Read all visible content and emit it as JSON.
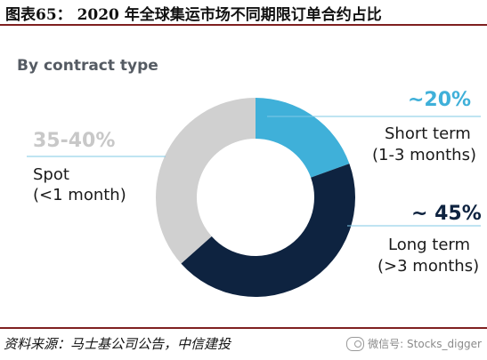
{
  "figure": {
    "title": "图表65：  2020 年全球集运市场不同期限订单合约占比",
    "source": "资料来源：马士基公司公告，中信建投",
    "watermark": "微信号: Stocks_digger"
  },
  "chart_data": {
    "type": "pie",
    "donut": true,
    "subtitle": "By contract type",
    "slices": [
      {
        "key": "short",
        "pct_label": "~20%",
        "label_line1": "Short term",
        "label_line2": "(1-3 months)",
        "value": 20,
        "color": "#3fb0d9"
      },
      {
        "key": "long",
        "pct_label": "~ 45%",
        "label_line1": "Long term",
        "label_line2": "(>3 months)",
        "value": 45,
        "color": "#0e2340"
      },
      {
        "key": "spot",
        "pct_label": "35-40%",
        "label_line1": "Spot",
        "label_line2": "(<1 month)",
        "value": 37.5,
        "color": "#d0d0d0"
      }
    ],
    "pct_colors": {
      "short": "#3fb0d9",
      "long": "#0e2340",
      "spot": "#c8c8c8"
    }
  }
}
